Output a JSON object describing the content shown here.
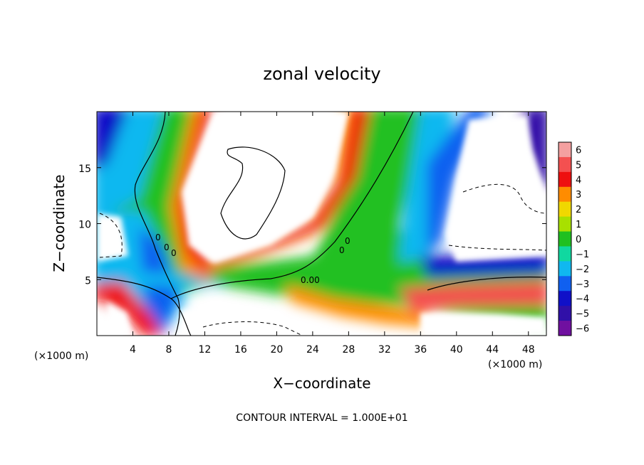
{
  "chart_data": {
    "type": "heatmap",
    "title": "zonal velocity",
    "xlabel": "X−coordinate",
    "ylabel": "Z−coordinate",
    "x_unit_left": "(×1000 m)",
    "x_unit_right": "(×1000 m)",
    "xlim": [
      0,
      50
    ],
    "ylim": [
      0,
      20
    ],
    "x_ticks": [
      4,
      8,
      12,
      16,
      20,
      24,
      28,
      32,
      36,
      40,
      44,
      48
    ],
    "y_ticks": [
      5,
      10,
      15
    ],
    "x_tick_labels": [
      "4",
      "8",
      "12",
      "16",
      "20",
      "24",
      "28",
      "32",
      "36",
      "40",
      "44",
      "48"
    ],
    "y_tick_labels": [
      "5",
      "10",
      "15"
    ],
    "colorbar": {
      "levels": [
        6,
        5,
        4,
        3,
        2,
        1,
        0,
        -1,
        -2,
        -3,
        -4,
        -5,
        -6
      ],
      "labels": [
        "6",
        "5",
        "4",
        "3",
        "2",
        "1",
        "0",
        "−1",
        "−2",
        "−3",
        "−4",
        "−5",
        "−6"
      ],
      "colors": [
        "#f4a0a0",
        "#f45050",
        "#ee1010",
        "#ff8c00",
        "#f0d800",
        "#a8e000",
        "#20c020",
        "#10d8a0",
        "#10b8f0",
        "#1060f0",
        "#1010c8",
        "#3010a8",
        "#7010a0"
      ]
    },
    "contour_labels": [
      "0",
      "0",
      "0",
      "0.00",
      "0",
      "0"
    ],
    "footer": "CONTOUR INTERVAL = 1.000E+01",
    "grid": false
  }
}
